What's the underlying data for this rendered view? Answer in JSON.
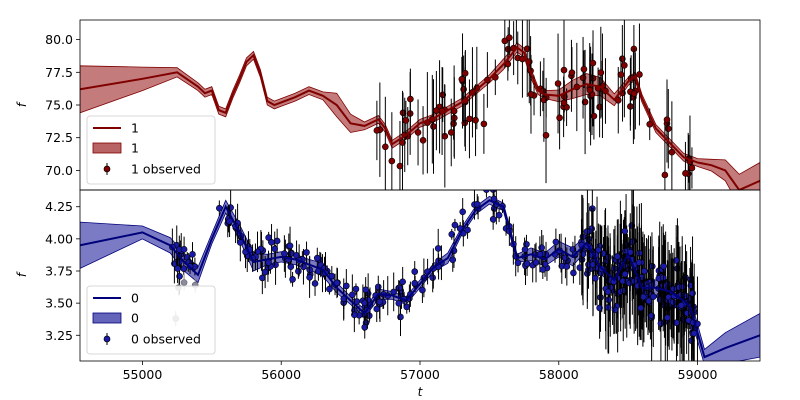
{
  "chart_data": [
    {
      "type": "line",
      "panel": "top",
      "ylabel": "f",
      "ylim": [
        68.5,
        81.5
      ],
      "xlim": [
        54550,
        59450
      ],
      "yticks": [
        "70.0",
        "72.5",
        "75.0",
        "77.5",
        "80.0"
      ],
      "ytick_values": [
        70.0,
        72.5,
        75.0,
        77.5,
        80.0
      ],
      "colors": {
        "line": "#800000",
        "band": "#b85c5c",
        "marker": "#800000"
      },
      "legend_position": "lower-left",
      "legend": [
        "1",
        "1",
        "1 observed"
      ],
      "series": [
        {
          "name": "1",
          "kind": "model",
          "x": [
            54550,
            55000,
            55250,
            55400,
            55450,
            55500,
            55550,
            55600,
            55650,
            55700,
            55750,
            55800,
            55850,
            55900,
            55950,
            56000,
            56100,
            56200,
            56300,
            56400,
            56500,
            56600,
            56700,
            56750,
            56800,
            56900,
            57000,
            57100,
            57200,
            57300,
            57400,
            57500,
            57600,
            57700,
            57750,
            57800,
            57850,
            57900,
            58000,
            58100,
            58200,
            58300,
            58400,
            58500,
            58550,
            58600,
            58700,
            58800,
            58900,
            59000,
            59100,
            59200,
            59300,
            59450
          ],
          "y": [
            76.2,
            77.0,
            77.5,
            76.4,
            75.9,
            76.1,
            74.6,
            74.4,
            75.8,
            77.0,
            78.3,
            78.8,
            77.4,
            75.3,
            75.0,
            75.2,
            75.6,
            76.1,
            75.7,
            75.0,
            73.6,
            73.4,
            73.9,
            73.2,
            72.0,
            72.7,
            73.6,
            74.0,
            74.6,
            75.2,
            76.1,
            77.0,
            78.1,
            79.4,
            79.0,
            77.4,
            76.1,
            75.8,
            75.7,
            76.2,
            76.6,
            76.4,
            75.4,
            76.8,
            77.2,
            75.5,
            73.2,
            72.1,
            71.0,
            70.6,
            70.4,
            70.0,
            68.5,
            69.2
          ],
          "sigma": [
            1.8,
            0.9,
            0.35,
            0.3,
            0.3,
            0.3,
            0.3,
            0.3,
            0.3,
            0.3,
            0.3,
            0.3,
            0.3,
            0.3,
            0.3,
            0.3,
            0.3,
            0.3,
            0.3,
            0.9,
            0.7,
            0.3,
            0.3,
            0.3,
            0.3,
            0.3,
            0.3,
            0.3,
            0.3,
            0.3,
            0.3,
            0.3,
            0.4,
            0.35,
            0.35,
            0.35,
            0.3,
            0.3,
            0.45,
            0.7,
            0.8,
            0.7,
            0.45,
            0.3,
            0.3,
            0.3,
            0.3,
            0.3,
            0.3,
            0.3,
            0.45,
            0.8,
            1.2,
            1.4
          ]
        },
        {
          "name": "1 observed",
          "kind": "observed",
          "n": 110,
          "x_range": [
            56650,
            59000
          ],
          "ylim_scatter": [
            69.5,
            81.0
          ]
        }
      ]
    },
    {
      "type": "line",
      "panel": "bottom",
      "ylabel": "f",
      "xlabel": "t",
      "ylim": [
        3.05,
        4.38
      ],
      "xlim": [
        54550,
        59450
      ],
      "yticks": [
        "3.25",
        "3.50",
        "3.75",
        "4.00",
        "4.25"
      ],
      "ytick_values": [
        3.25,
        3.5,
        3.75,
        4.0,
        4.25
      ],
      "xticks": [
        "55000",
        "56000",
        "57000",
        "58000",
        "59000"
      ],
      "xtick_values": [
        55000,
        56000,
        57000,
        58000,
        59000
      ],
      "colors": {
        "line": "#00007a",
        "band": "#6b6bbd",
        "marker": "#1a1aa8"
      },
      "legend_position": "lower-left",
      "legend": [
        "0",
        "0",
        "0 observed"
      ],
      "series": [
        {
          "name": "0",
          "kind": "model",
          "x": [
            54550,
            55000,
            55200,
            55300,
            55400,
            55500,
            55600,
            55700,
            55800,
            55900,
            56000,
            56100,
            56200,
            56300,
            56400,
            56500,
            56600,
            56700,
            56800,
            56900,
            57000,
            57100,
            57200,
            57300,
            57400,
            57500,
            57600,
            57700,
            57800,
            57900,
            58000,
            58100,
            58200,
            58300,
            58400,
            58500,
            58600,
            58700,
            58800,
            58900,
            58950,
            59050,
            59200,
            59450
          ],
          "y": [
            3.95,
            4.05,
            3.95,
            3.82,
            3.72,
            4.0,
            4.25,
            4.05,
            3.82,
            3.84,
            3.86,
            3.84,
            3.8,
            3.76,
            3.62,
            3.52,
            3.42,
            3.57,
            3.56,
            3.52,
            3.65,
            3.78,
            3.85,
            4.06,
            4.22,
            4.3,
            4.25,
            3.85,
            3.88,
            3.84,
            3.92,
            3.86,
            3.97,
            3.78,
            3.68,
            3.88,
            3.62,
            3.62,
            3.59,
            3.52,
            3.46,
            3.08,
            3.15,
            3.25
          ],
          "sigma": [
            0.18,
            0.05,
            0.06,
            0.07,
            0.06,
            0.04,
            0.05,
            0.06,
            0.07,
            0.04,
            0.04,
            0.04,
            0.04,
            0.05,
            0.04,
            0.03,
            0.03,
            0.04,
            0.03,
            0.03,
            0.03,
            0.03,
            0.04,
            0.03,
            0.03,
            0.03,
            0.03,
            0.03,
            0.05,
            0.05,
            0.06,
            0.07,
            0.06,
            0.05,
            0.05,
            0.06,
            0.07,
            0.06,
            0.05,
            0.06,
            0.07,
            0.06,
            0.12,
            0.17
          ]
        },
        {
          "name": "0 observed",
          "kind": "observed",
          "n": 420,
          "x_range": [
            55200,
            59000
          ],
          "ylim_scatter": [
            3.25,
            4.4
          ]
        }
      ]
    }
  ]
}
